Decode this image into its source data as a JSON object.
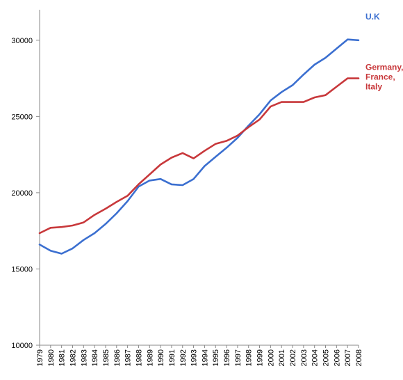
{
  "chart_data": {
    "type": "line",
    "title": "",
    "xlabel": "",
    "ylabel": "",
    "x": [
      "1979",
      "1980",
      "1981",
      "1982",
      "1983",
      "1984",
      "1985",
      "1986",
      "1987",
      "1988",
      "1989",
      "1990",
      "1991",
      "1992",
      "1993",
      "1994",
      "1995",
      "1996",
      "1997",
      "1998",
      "1999",
      "2000",
      "2001",
      "2002",
      "2003",
      "2004",
      "2005",
      "2006",
      "2007",
      "2008"
    ],
    "ylim": [
      10000,
      32000
    ],
    "yticks": [
      10000,
      15000,
      20000,
      25000,
      30000
    ],
    "grid": false,
    "series": [
      {
        "name": "U.K",
        "color": "#3b6fd0",
        "values": [
          16600,
          16200,
          16000,
          16350,
          16900,
          17350,
          17950,
          18650,
          19450,
          20400,
          20800,
          20900,
          20550,
          20500,
          20900,
          21750,
          22350,
          22950,
          23600,
          24400,
          25150,
          26050,
          26600,
          27050,
          27750,
          28400,
          28850,
          29450,
          30050,
          30000
        ]
      },
      {
        "name": "Germany,\nFrance,\nItaly",
        "color": "#c8383b",
        "values": [
          17350,
          17700,
          17750,
          17850,
          18050,
          18550,
          18950,
          19400,
          19800,
          20550,
          21200,
          21850,
          22300,
          22600,
          22250,
          22750,
          23200,
          23400,
          23750,
          24300,
          24800,
          25650,
          25950,
          25950,
          25950,
          26250,
          26400,
          26950,
          27500,
          27500
        ]
      }
    ]
  }
}
